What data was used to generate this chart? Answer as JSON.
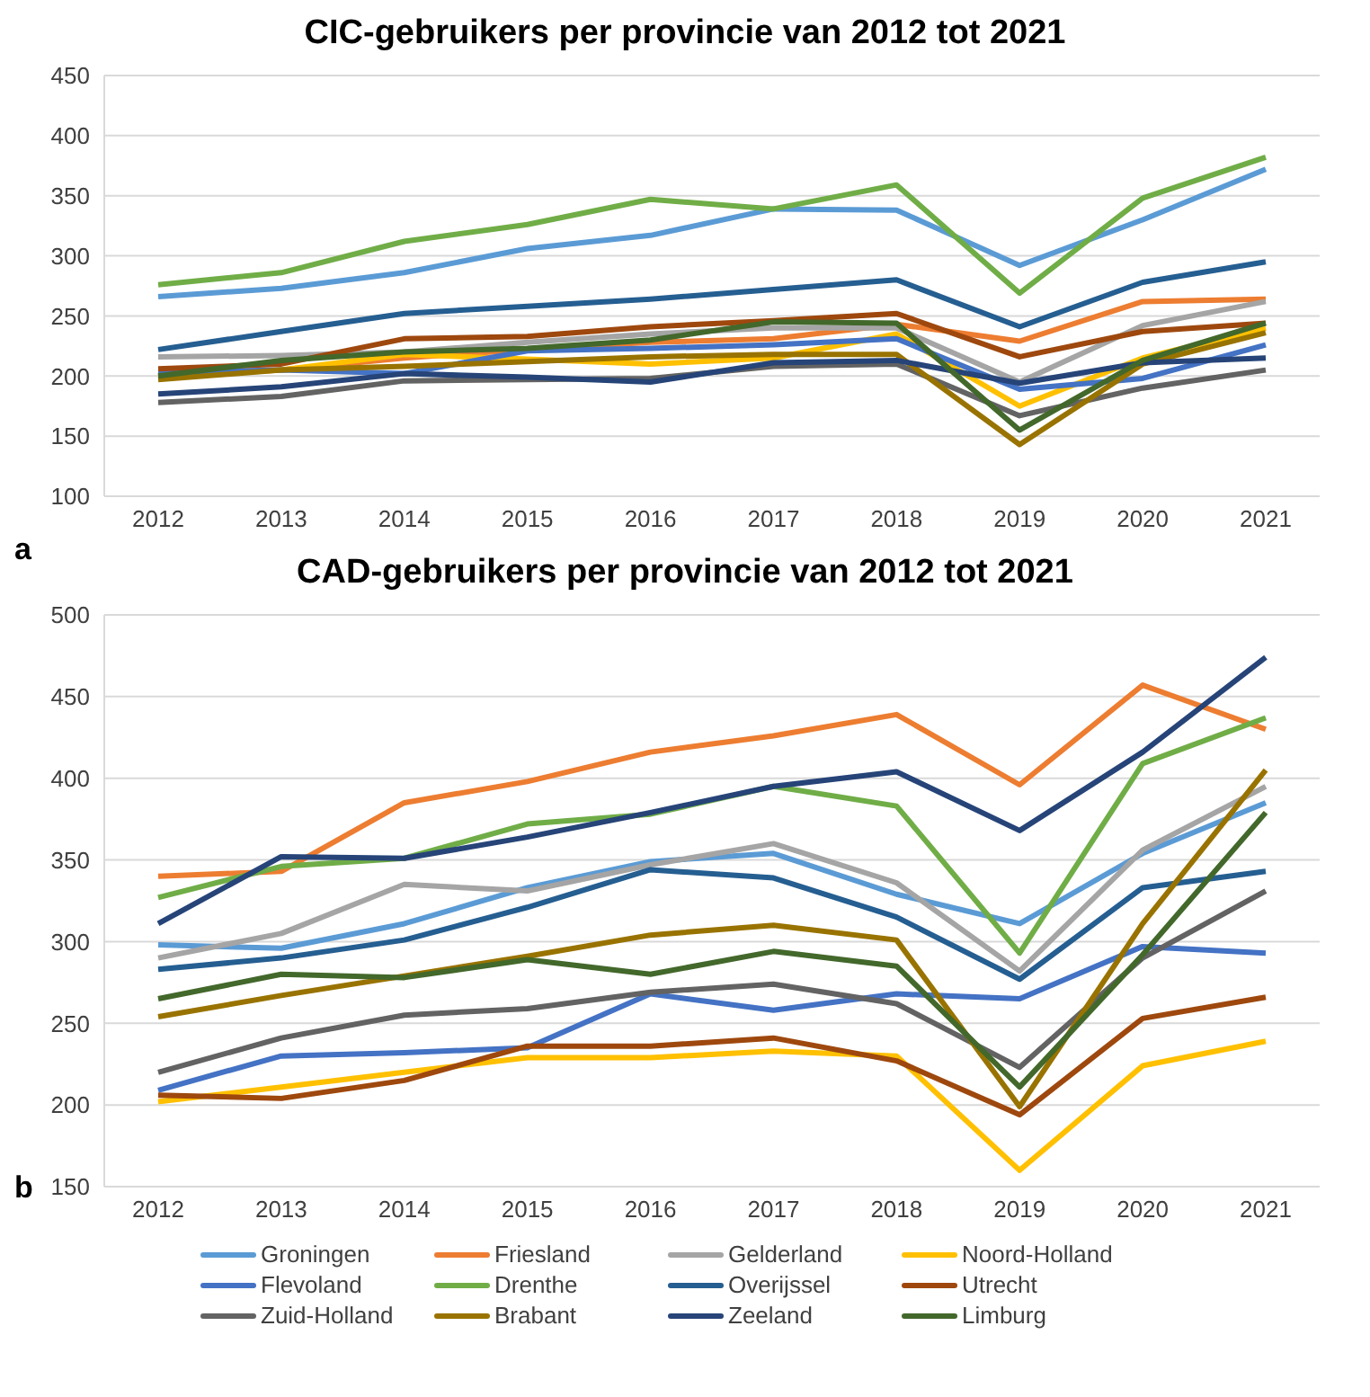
{
  "chart_data": [
    {
      "type": "line",
      "title": "CIC-gebruikers per provincie van 2012 tot 2021",
      "categories": [
        "2012",
        "2013",
        "2014",
        "2015",
        "2016",
        "2017",
        "2018",
        "2019",
        "2020",
        "2021"
      ],
      "ylim": [
        100,
        450
      ],
      "yticks": [
        100,
        150,
        200,
        250,
        300,
        350,
        400,
        450
      ],
      "grid": "y",
      "legend": false,
      "marker": "none",
      "line_style": "solid",
      "annotations": [
        "a"
      ],
      "series": [
        {
          "color": "#5b9bd5",
          "values": [
            266,
            273,
            286,
            306,
            317,
            339,
            338,
            292,
            330,
            372
          ]
        },
        {
          "color": "#ed7d31",
          "values": [
            200,
            205,
            215,
            222,
            228,
            231,
            243,
            229,
            262,
            264
          ]
        },
        {
          "color": "#a5a5a5",
          "values": [
            216,
            217,
            220,
            228,
            235,
            240,
            240,
            195,
            242,
            262
          ]
        },
        {
          "color": "#ffc000",
          "values": [
            199,
            205,
            218,
            214,
            210,
            215,
            235,
            175,
            215,
            240
          ]
        },
        {
          "color": "#4472c4",
          "values": [
            203,
            205,
            202,
            221,
            223,
            226,
            231,
            189,
            198,
            226
          ]
        },
        {
          "color": "#70ad47",
          "values": [
            276,
            286,
            312,
            326,
            347,
            339,
            359,
            269,
            348,
            382
          ]
        },
        {
          "color": "#255e91",
          "values": [
            222,
            237,
            252,
            258,
            264,
            272,
            280,
            241,
            278,
            295
          ]
        },
        {
          "color": "#9e480e",
          "values": [
            206,
            210,
            231,
            233,
            241,
            246,
            252,
            216,
            237,
            244
          ]
        },
        {
          "color": "#636363",
          "values": [
            178,
            183,
            196,
            197,
            198,
            208,
            210,
            167,
            190,
            205
          ]
        },
        {
          "color": "#997300",
          "values": [
            197,
            205,
            208,
            212,
            216,
            218,
            218,
            143,
            210,
            236
          ]
        },
        {
          "color": "#264478",
          "values": [
            185,
            191,
            202,
            199,
            195,
            211,
            213,
            194,
            211,
            215
          ]
        },
        {
          "color": "#43682b",
          "values": [
            200,
            213,
            220,
            223,
            230,
            245,
            244,
            155,
            213,
            244
          ]
        }
      ]
    },
    {
      "type": "line",
      "title": "CAD-gebruikers per provincie van 2012 tot 2021",
      "categories": [
        "2012",
        "2013",
        "2014",
        "2015",
        "2016",
        "2017",
        "2018",
        "2019",
        "2020",
        "2021"
      ],
      "ylim": [
        150,
        500
      ],
      "yticks": [
        150,
        200,
        250,
        300,
        350,
        400,
        450,
        500
      ],
      "grid": "y",
      "legend": "bottom",
      "marker": "none",
      "line_style": "solid",
      "annotations": [
        "b"
      ],
      "series": [
        {
          "name": "Groningen",
          "color": "#5b9bd5",
          "values": [
            298,
            296,
            311,
            333,
            349,
            354,
            329,
            311,
            354,
            385
          ]
        },
        {
          "name": "Friesland",
          "color": "#ed7d31",
          "values": [
            340,
            343,
            385,
            398,
            416,
            426,
            439,
            396,
            457,
            430
          ]
        },
        {
          "name": "Gelderland",
          "color": "#a5a5a5",
          "values": [
            290,
            305,
            335,
            331,
            347,
            360,
            336,
            282,
            356,
            395
          ]
        },
        {
          "name": "Noord-Holland",
          "color": "#ffc000",
          "values": [
            202,
            211,
            220,
            229,
            229,
            233,
            230,
            160,
            224,
            239
          ]
        },
        {
          "name": "Flevoland",
          "color": "#4472c4",
          "values": [
            209,
            230,
            232,
            235,
            268,
            258,
            268,
            265,
            297,
            293
          ]
        },
        {
          "name": "Drenthe",
          "color": "#70ad47",
          "values": [
            327,
            346,
            351,
            372,
            378,
            395,
            383,
            293,
            409,
            437
          ]
        },
        {
          "name": "Overijssel",
          "color": "#255e91",
          "values": [
            283,
            290,
            301,
            321,
            344,
            339,
            315,
            277,
            333,
            343
          ]
        },
        {
          "name": "Utrecht",
          "color": "#9e480e",
          "values": [
            206,
            204,
            215,
            236,
            236,
            241,
            227,
            194,
            253,
            266
          ]
        },
        {
          "name": "Zuid-Holland",
          "color": "#636363",
          "values": [
            220,
            241,
            255,
            259,
            269,
            274,
            262,
            223,
            290,
            331
          ]
        },
        {
          "name": "Brabant",
          "color": "#997300",
          "values": [
            254,
            267,
            279,
            291,
            304,
            310,
            301,
            199,
            311,
            405
          ]
        },
        {
          "name": "Zeeland",
          "color": "#264478",
          "values": [
            311,
            352,
            351,
            364,
            379,
            395,
            404,
            368,
            416,
            474
          ]
        },
        {
          "name": "Limburg",
          "color": "#43682b",
          "values": [
            265,
            280,
            278,
            289,
            280,
            294,
            285,
            211,
            292,
            379
          ]
        }
      ]
    }
  ]
}
